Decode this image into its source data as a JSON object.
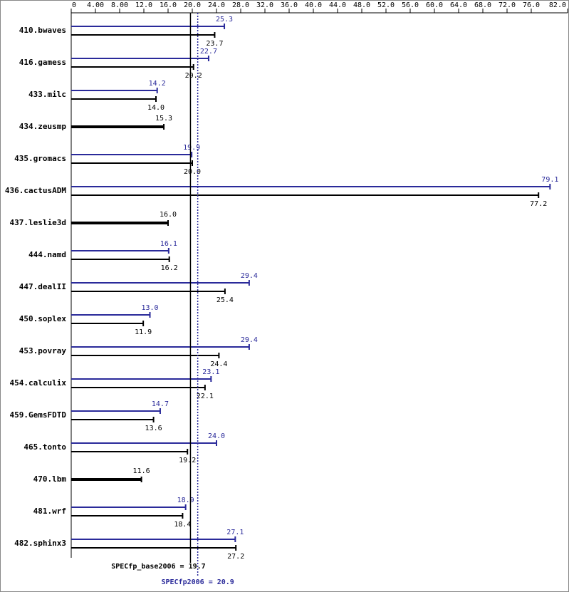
{
  "chart_data": {
    "type": "bar",
    "orientation": "horizontal",
    "categories": [
      "410.bwaves",
      "416.gamess",
      "433.milc",
      "434.zeusmp",
      "435.gromacs",
      "436.cactusADM",
      "437.leslie3d",
      "444.namd",
      "447.dealII",
      "450.soplex",
      "453.povray",
      "454.calculix",
      "459.GemsFDTD",
      "465.tonto",
      "470.lbm",
      "481.wrf",
      "482.sphinx3"
    ],
    "series": [
      {
        "color": "#2a2a9a",
        "values": [
          25.3,
          22.7,
          14.2,
          null,
          19.9,
          79.1,
          null,
          16.1,
          29.4,
          13.0,
          29.4,
          23.1,
          14.7,
          24.0,
          null,
          18.9,
          27.1
        ],
        "value_labels": [
          "25.3",
          "22.7",
          "14.2",
          null,
          "19.9",
          "79.1",
          null,
          "16.1",
          "29.4",
          "13.0",
          "29.4",
          "23.1",
          "14.7",
          "24.0",
          null,
          "18.9",
          "27.1"
        ]
      },
      {
        "color": "#000000",
        "values": [
          23.7,
          20.2,
          14.0,
          15.3,
          20.0,
          77.2,
          16.0,
          16.2,
          25.4,
          11.9,
          24.4,
          22.1,
          13.6,
          19.2,
          11.6,
          18.4,
          27.2
        ],
        "value_labels": [
          "23.7",
          "20.2",
          "14.0",
          "15.3",
          "20.0",
          "77.2",
          "16.0",
          "16.2",
          "25.4",
          "11.9",
          "24.4",
          "22.1",
          "13.6",
          "19.2",
          "11.6",
          "18.4",
          "27.2"
        ]
      }
    ],
    "xlim": [
      0,
      82
    ],
    "xticks": [
      0,
      {
        "value": 4,
        "label": "4.00"
      },
      {
        "value": 8,
        "label": "8.00"
      },
      {
        "value": 12,
        "label": "12.0"
      },
      {
        "value": 16,
        "label": "16.0"
      },
      {
        "value": 20,
        "label": "20.0"
      },
      {
        "value": 24,
        "label": "24.0"
      },
      {
        "value": 28,
        "label": "28.0"
      },
      {
        "value": 32,
        "label": "32.0"
      },
      {
        "value": 36,
        "label": "36.0"
      },
      {
        "value": 40,
        "label": "40.0"
      },
      {
        "value": 44,
        "label": "44.0"
      },
      {
        "value": 48,
        "label": "48.0"
      },
      {
        "value": 52,
        "label": "52.0"
      },
      {
        "value": 56,
        "label": "56.0"
      },
      {
        "value": 60,
        "label": "60.0"
      },
      {
        "value": 64,
        "label": "64.0"
      },
      {
        "value": 68,
        "label": "68.0"
      },
      {
        "value": 72,
        "label": "72.0"
      },
      {
        "value": 76,
        "label": "76.0"
      },
      {
        "value": 82,
        "label": "82.0"
      }
    ],
    "reference_lines": [
      {
        "value": 19.7,
        "label": "SPECfp_base2006 = 19.7",
        "color": "#000000",
        "dashed": false
      },
      {
        "value": 20.9,
        "label": "SPECfp2006 = 20.9",
        "color": "#2a2a9a",
        "dashed": true
      }
    ]
  }
}
